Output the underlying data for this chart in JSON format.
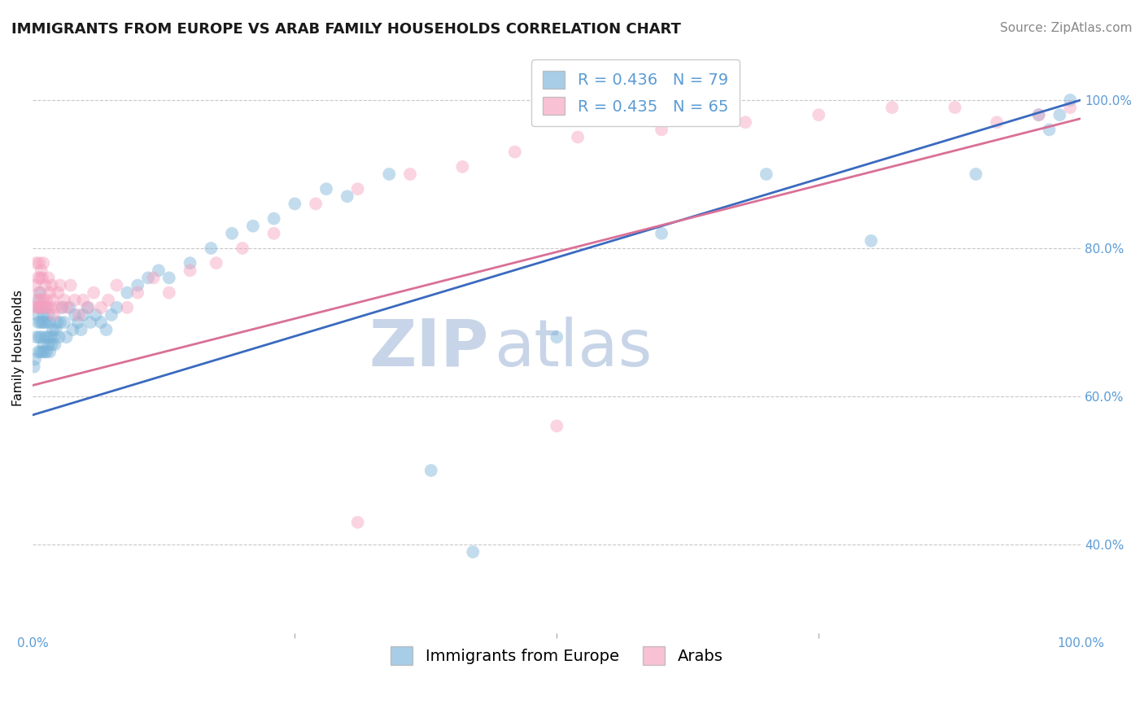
{
  "title": "IMMIGRANTS FROM EUROPE VS ARAB FAMILY HOUSEHOLDS CORRELATION CHART",
  "source": "Source: ZipAtlas.com",
  "ylabel": "Family Households",
  "watermark_zip": "ZIP",
  "watermark_atlas": "atlas",
  "legend_blue_r": "R = 0.436",
  "legend_blue_n": "N = 79",
  "legend_pink_r": "R = 0.435",
  "legend_pink_n": "N = 65",
  "legend_blue_label": "Immigrants from Europe",
  "legend_pink_label": "Arabs",
  "blue_color": "#7ab3d9",
  "pink_color": "#f5a0be",
  "regression_blue_color": "#3a6abf",
  "regression_pink_color": "#d97097",
  "xlim": [
    0.0,
    1.0
  ],
  "ylim": [
    0.28,
    1.05
  ],
  "xtick_positions": [
    0.0,
    1.0
  ],
  "xtick_labels": [
    "0.0%",
    "100.0%"
  ],
  "xtick_minor_positions": [
    0.25,
    0.5,
    0.75
  ],
  "ytick_values": [
    0.4,
    0.6,
    0.8,
    1.0
  ],
  "ytick_labels": [
    "40.0%",
    "60.0%",
    "80.0%",
    "100.0%"
  ],
  "blue_regression_start_y": 0.575,
  "blue_regression_end_y": 1.0,
  "pink_regression_start_y": 0.615,
  "pink_regression_end_y": 0.975,
  "blue_x": [
    0.001,
    0.002,
    0.003,
    0.004,
    0.005,
    0.005,
    0.006,
    0.006,
    0.006,
    0.007,
    0.007,
    0.007,
    0.008,
    0.008,
    0.009,
    0.009,
    0.01,
    0.01,
    0.011,
    0.011,
    0.012,
    0.012,
    0.013,
    0.013,
    0.014,
    0.015,
    0.015,
    0.016,
    0.016,
    0.017,
    0.018,
    0.019,
    0.02,
    0.021,
    0.022,
    0.023,
    0.025,
    0.026,
    0.028,
    0.03,
    0.032,
    0.035,
    0.038,
    0.04,
    0.043,
    0.046,
    0.048,
    0.052,
    0.055,
    0.06,
    0.065,
    0.07,
    0.075,
    0.08,
    0.09,
    0.1,
    0.11,
    0.12,
    0.13,
    0.15,
    0.17,
    0.19,
    0.21,
    0.23,
    0.25,
    0.28,
    0.3,
    0.34,
    0.38,
    0.42,
    0.5,
    0.6,
    0.7,
    0.8,
    0.9,
    0.96,
    0.97,
    0.98,
    0.99
  ],
  "blue_y": [
    0.64,
    0.65,
    0.68,
    0.71,
    0.66,
    0.7,
    0.72,
    0.68,
    0.73,
    0.66,
    0.7,
    0.74,
    0.68,
    0.72,
    0.66,
    0.7,
    0.67,
    0.71,
    0.66,
    0.7,
    0.68,
    0.72,
    0.66,
    0.7,
    0.68,
    0.67,
    0.71,
    0.66,
    0.7,
    0.68,
    0.67,
    0.69,
    0.68,
    0.67,
    0.69,
    0.7,
    0.68,
    0.7,
    0.72,
    0.7,
    0.68,
    0.72,
    0.69,
    0.71,
    0.7,
    0.69,
    0.71,
    0.72,
    0.7,
    0.71,
    0.7,
    0.69,
    0.71,
    0.72,
    0.74,
    0.75,
    0.76,
    0.77,
    0.76,
    0.78,
    0.8,
    0.82,
    0.83,
    0.84,
    0.86,
    0.88,
    0.87,
    0.9,
    0.5,
    0.39,
    0.68,
    0.82,
    0.9,
    0.81,
    0.9,
    0.98,
    0.96,
    0.98,
    1.0
  ],
  "pink_x": [
    0.001,
    0.002,
    0.003,
    0.004,
    0.005,
    0.005,
    0.006,
    0.006,
    0.007,
    0.007,
    0.008,
    0.008,
    0.009,
    0.009,
    0.01,
    0.01,
    0.011,
    0.012,
    0.013,
    0.014,
    0.015,
    0.016,
    0.017,
    0.018,
    0.019,
    0.02,
    0.022,
    0.024,
    0.026,
    0.028,
    0.03,
    0.033,
    0.036,
    0.04,
    0.044,
    0.048,
    0.053,
    0.058,
    0.065,
    0.072,
    0.08,
    0.09,
    0.1,
    0.115,
    0.13,
    0.15,
    0.175,
    0.2,
    0.23,
    0.27,
    0.31,
    0.36,
    0.41,
    0.46,
    0.52,
    0.6,
    0.68,
    0.75,
    0.82,
    0.88,
    0.92,
    0.96,
    0.99,
    0.31,
    0.5
  ],
  "pink_y": [
    0.72,
    0.75,
    0.78,
    0.73,
    0.72,
    0.76,
    0.78,
    0.74,
    0.72,
    0.76,
    0.73,
    0.77,
    0.72,
    0.76,
    0.73,
    0.78,
    0.72,
    0.75,
    0.73,
    0.72,
    0.76,
    0.74,
    0.72,
    0.75,
    0.73,
    0.71,
    0.72,
    0.74,
    0.75,
    0.72,
    0.73,
    0.72,
    0.75,
    0.73,
    0.71,
    0.73,
    0.72,
    0.74,
    0.72,
    0.73,
    0.75,
    0.72,
    0.74,
    0.76,
    0.74,
    0.77,
    0.78,
    0.8,
    0.82,
    0.86,
    0.88,
    0.9,
    0.91,
    0.93,
    0.95,
    0.96,
    0.97,
    0.98,
    0.99,
    0.99,
    0.97,
    0.98,
    0.99,
    0.43,
    0.56
  ],
  "title_fontsize": 13,
  "axis_label_fontsize": 11,
  "tick_fontsize": 11,
  "legend_fontsize": 14,
  "source_fontsize": 11,
  "marker_size": 130,
  "marker_alpha": 0.45,
  "grid_color": "#c8c8c8",
  "grid_style": "--",
  "background_color": "#ffffff",
  "watermark_color": "#c8d5e8",
  "watermark_zip_fontsize": 58,
  "watermark_atlas_fontsize": 58,
  "tick_color": "#5b9bd5"
}
